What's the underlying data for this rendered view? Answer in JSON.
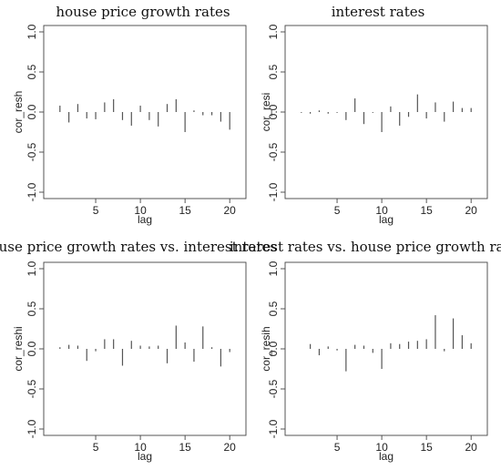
{
  "chart_data": [
    {
      "type": "bar",
      "title": "house price growth rates",
      "xlabel": "lag",
      "ylabel": "cor_resh",
      "xlim": [
        0,
        21
      ],
      "ylim": [
        -1,
        1
      ],
      "xticks": [
        "5",
        "10",
        "15",
        "20"
      ],
      "yticks": [
        "-1.0",
        "-0.5",
        "0.0",
        "0.5",
        "1.0"
      ],
      "x": [
        1,
        2,
        3,
        4,
        5,
        6,
        7,
        8,
        9,
        10,
        11,
        12,
        13,
        14,
        15,
        16,
        17,
        18,
        19,
        20
      ],
      "values": [
        0.08,
        -0.13,
        0.1,
        -0.08,
        -0.09,
        0.12,
        0.16,
        -0.1,
        -0.17,
        0.08,
        -0.1,
        -0.18,
        0.1,
        0.16,
        -0.25,
        0.02,
        -0.04,
        -0.04,
        -0.12,
        -0.22
      ],
      "grid": false
    },
    {
      "type": "bar",
      "title": "interest rates",
      "xlabel": "lag",
      "ylabel": "cor_resi",
      "xlim": [
        0,
        21
      ],
      "ylim": [
        -1,
        1
      ],
      "xticks": [
        "5",
        "10",
        "15",
        "20"
      ],
      "yticks": [
        "-1.0",
        "-0.5",
        "0.0",
        "0.5",
        "1.0"
      ],
      "x": [
        1,
        2,
        3,
        4,
        5,
        6,
        7,
        8,
        9,
        10,
        11,
        12,
        13,
        14,
        15,
        16,
        17,
        18,
        19,
        20
      ],
      "values": [
        -0.01,
        -0.02,
        0.02,
        -0.02,
        -0.01,
        -0.1,
        0.17,
        -0.15,
        -0.01,
        -0.25,
        0.07,
        -0.17,
        -0.06,
        0.22,
        -0.08,
        0.12,
        -0.12,
        0.13,
        0.05,
        0.05
      ],
      "grid": false
    },
    {
      "type": "bar",
      "title": "house price growth rates vs. interest rates",
      "xlabel": "lag",
      "ylabel": "cor_reshi",
      "xlim": [
        0,
        21
      ],
      "ylim": [
        -1,
        1
      ],
      "xticks": [
        "5",
        "10",
        "15",
        "20"
      ],
      "yticks": [
        "-1.0",
        "-0.5",
        "0.0",
        "0.5",
        "1.0"
      ],
      "x": [
        1,
        2,
        3,
        4,
        5,
        6,
        7,
        8,
        9,
        10,
        11,
        12,
        13,
        14,
        15,
        16,
        17,
        18,
        19,
        20
      ],
      "values": [
        0.02,
        0.05,
        0.04,
        -0.15,
        -0.03,
        0.12,
        0.12,
        -0.21,
        0.1,
        0.04,
        0.03,
        0.04,
        -0.18,
        0.29,
        0.08,
        -0.16,
        0.28,
        0.02,
        -0.22,
        -0.04
      ],
      "grid": false
    },
    {
      "type": "bar",
      "title": "interest rates vs. house price growth rates",
      "xlabel": "lag",
      "ylabel": "cor_resih",
      "xlim": [
        0,
        21
      ],
      "ylim": [
        -1,
        1
      ],
      "xticks": [
        "5",
        "10",
        "15",
        "20"
      ],
      "yticks": [
        "-1.0",
        "-0.5",
        "0.0",
        "0.5",
        "1.0"
      ],
      "x": [
        1,
        2,
        3,
        4,
        5,
        6,
        7,
        8,
        9,
        10,
        11,
        12,
        13,
        14,
        15,
        16,
        17,
        18,
        19,
        20
      ],
      "values": [
        0.0,
        0.06,
        -0.08,
        0.03,
        -0.02,
        -0.28,
        0.05,
        0.04,
        -0.05,
        -0.25,
        0.07,
        0.06,
        0.09,
        0.1,
        0.12,
        0.42,
        -0.03,
        0.38,
        0.17,
        0.07
      ],
      "grid": false
    }
  ]
}
